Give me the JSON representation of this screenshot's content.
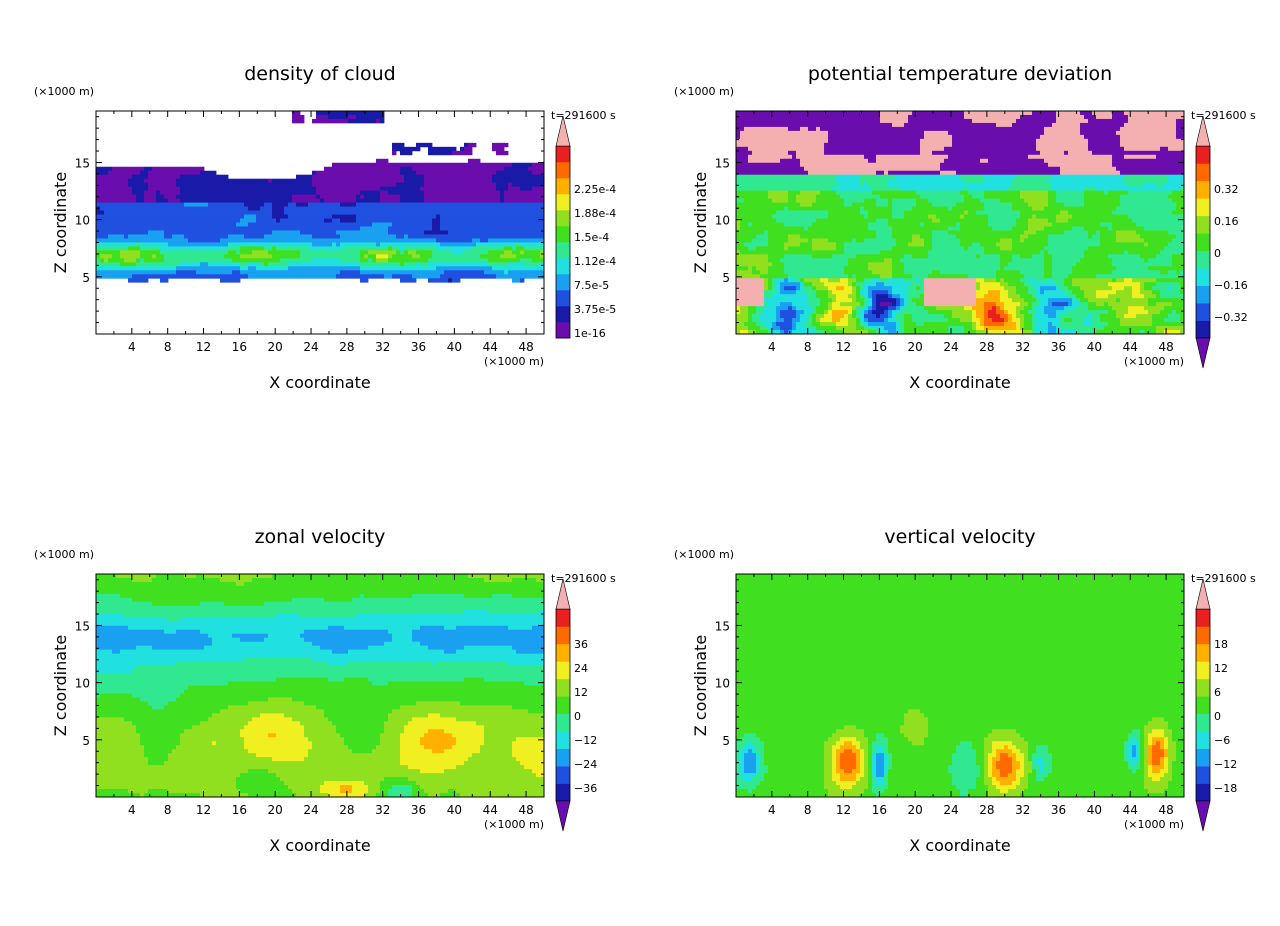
{
  "chart_data": [
    {
      "type": "heatmap",
      "title": "density of cloud",
      "xlabel": "X coordinate",
      "ylabel": "Z coordinate",
      "x_unit": "(×1000 m)",
      "y_unit": "(×1000 m)",
      "time_label": "t=291600 s",
      "x_ticks": [
        "4",
        "8",
        "12",
        "16",
        "20",
        "24",
        "28",
        "32",
        "36",
        "40",
        "44",
        "48"
      ],
      "y_ticks": [
        "5",
        "10",
        "15"
      ],
      "xlim": [
        0,
        50
      ],
      "ylim": [
        0,
        19.5
      ],
      "colorbar_labels": [
        "2.25e-4",
        "1.88e-4",
        "1.5e-4",
        "1.12e-4",
        "7.5e-5",
        "3.75e-5",
        "1e-16"
      ],
      "colorbar_triangles": "top",
      "field": "cloud"
    },
    {
      "type": "heatmap",
      "title": "potential temperature deviation",
      "xlabel": "X coordinate",
      "ylabel": "Z coordinate",
      "x_unit": "(×1000 m)",
      "y_unit": "(×1000 m)",
      "time_label": "t=291600 s",
      "x_ticks": [
        "4",
        "8",
        "12",
        "16",
        "20",
        "24",
        "28",
        "32",
        "36",
        "40",
        "44",
        "48"
      ],
      "y_ticks": [
        "5",
        "10",
        "15"
      ],
      "xlim": [
        0,
        50
      ],
      "ylim": [
        0,
        19.5
      ],
      "colorbar_labels": [
        "0.32",
        "0.16",
        "0",
        "−0.16",
        "−0.32"
      ],
      "colorbar_triangles": "both",
      "field": "theta"
    },
    {
      "type": "heatmap",
      "title": "zonal velocity",
      "xlabel": "X coordinate",
      "ylabel": "Z coordinate",
      "x_unit": "(×1000 m)",
      "y_unit": "(×1000 m)",
      "time_label": "t=291600 s",
      "x_ticks": [
        "4",
        "8",
        "12",
        "16",
        "20",
        "24",
        "28",
        "32",
        "36",
        "40",
        "44",
        "48"
      ],
      "y_ticks": [
        "5",
        "10",
        "15"
      ],
      "xlim": [
        0,
        50
      ],
      "ylim": [
        0,
        19.5
      ],
      "colorbar_labels": [
        "36",
        "24",
        "12",
        "0",
        "−12",
        "−24",
        "−36"
      ],
      "colorbar_triangles": "both",
      "field": "u"
    },
    {
      "type": "heatmap",
      "title": "vertical velocity",
      "xlabel": "X coordinate",
      "ylabel": "Z coordinate",
      "x_unit": "(×1000 m)",
      "y_unit": "(×1000 m)",
      "time_label": "t=291600 s",
      "x_ticks": [
        "4",
        "8",
        "12",
        "16",
        "20",
        "24",
        "28",
        "32",
        "36",
        "40",
        "44",
        "48"
      ],
      "y_ticks": [
        "5",
        "10",
        "15"
      ],
      "xlim": [
        0,
        50
      ],
      "ylim": [
        0,
        19.5
      ],
      "colorbar_labels": [
        "18",
        "12",
        "6",
        "0",
        "−6",
        "−12",
        "−18"
      ],
      "colorbar_triangles": "both",
      "field": "w"
    }
  ],
  "palette": [
    "#6a0dad",
    "#1a1aa8",
    "#2050e0",
    "#1aa0f0",
    "#20e0e0",
    "#30e890",
    "#40e020",
    "#90e020",
    "#f0f020",
    "#ffb000",
    "#ff6a00",
    "#e82020",
    "#f4b0b0"
  ]
}
